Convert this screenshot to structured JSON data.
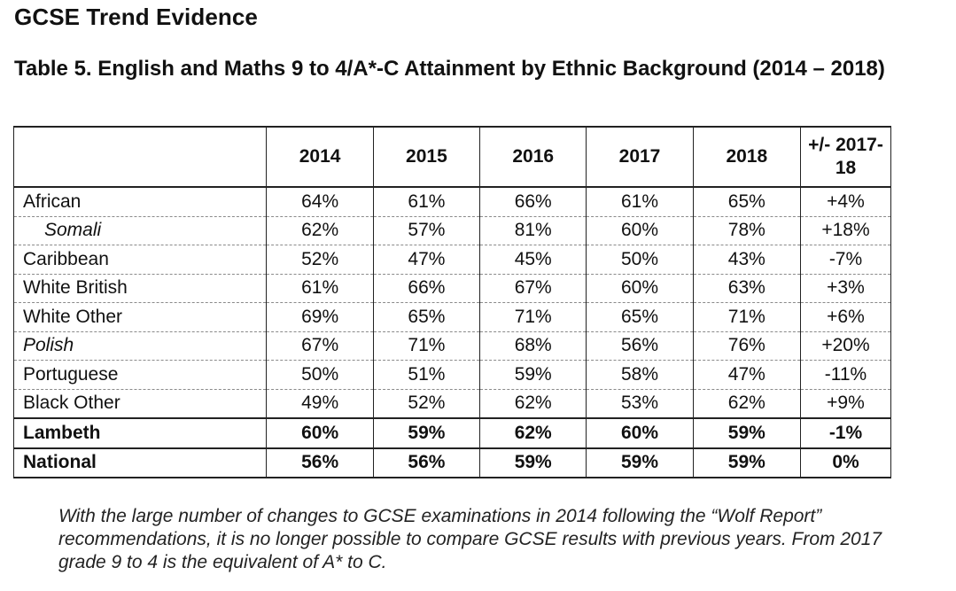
{
  "page_heading": "GCSE Trend Evidence",
  "table_title": "Table 5. English and Maths 9 to 4/A*-C Attainment by Ethnic Background (2014 – 2018)",
  "table": {
    "headers": [
      "",
      "2014",
      "2015",
      "2016",
      "2017",
      "2018",
      "+/- 2017-18"
    ],
    "rows": [
      {
        "label": "African",
        "values": [
          "64%",
          "61%",
          "66%",
          "61%",
          "65%",
          "+4%"
        ]
      },
      {
        "label": "Somali",
        "values": [
          "62%",
          "57%",
          "81%",
          "60%",
          "78%",
          "+18%"
        ]
      },
      {
        "label": "Caribbean",
        "values": [
          "52%",
          "47%",
          "45%",
          "50%",
          "43%",
          "-7%"
        ]
      },
      {
        "label": "White British",
        "values": [
          "61%",
          "66%",
          "67%",
          "60%",
          "63%",
          "+3%"
        ]
      },
      {
        "label": "White Other",
        "values": [
          "69%",
          "65%",
          "71%",
          "65%",
          "71%",
          "+6%"
        ]
      },
      {
        "label": "Polish",
        "values": [
          "67%",
          "71%",
          "68%",
          "56%",
          "76%",
          "+20%"
        ]
      },
      {
        "label": "Portuguese",
        "values": [
          "50%",
          "51%",
          "59%",
          "58%",
          "47%",
          "-11%"
        ]
      },
      {
        "label": "Black Other",
        "values": [
          "49%",
          "52%",
          "62%",
          "53%",
          "62%",
          "+9%"
        ]
      },
      {
        "label": "Lambeth",
        "values": [
          "60%",
          "59%",
          "62%",
          "60%",
          "59%",
          "-1%"
        ]
      },
      {
        "label": "National",
        "values": [
          "56%",
          "56%",
          "59%",
          "59%",
          "59%",
          "0%"
        ]
      }
    ]
  },
  "footnote": "With the large number of changes to GCSE examinations in 2014 following the “Wolf Report” recommendations, it is no longer possible to compare GCSE results with previous years. From 2017 grade 9 to 4 is the equivalent of A* to C."
}
